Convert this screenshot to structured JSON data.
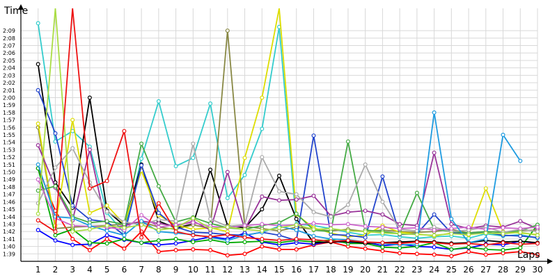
{
  "chart_data": {
    "type": "line",
    "ylabel": "Time",
    "xlabel": "Laps",
    "x": [
      1,
      2,
      3,
      4,
      5,
      6,
      7,
      8,
      9,
      10,
      11,
      12,
      13,
      14,
      15,
      16,
      17,
      18,
      19,
      20,
      21,
      22,
      23,
      24,
      25,
      26,
      27,
      28,
      29,
      30
    ],
    "xlim": [
      0,
      30
    ],
    "ylim": [
      98,
      132
    ],
    "ytick_values": [
      99,
      100,
      101,
      102,
      103,
      104,
      105,
      106,
      107,
      108,
      109,
      110,
      111,
      112,
      113,
      114,
      115,
      116,
      117,
      118,
      119,
      120,
      121,
      122,
      123,
      124,
      125,
      126,
      127,
      128,
      129
    ],
    "ytick_labels": [
      "1:39",
      "1:40",
      "1:41",
      "1:42",
      "1:43",
      "1:44",
      "1:45",
      "1:46",
      "1:47",
      "1:48",
      "1:49",
      "1:50",
      "1:51",
      "1:52",
      "1:53",
      "1:54",
      "1:55",
      "1:56",
      "1:57",
      "1:58",
      "1:59",
      "2:00",
      "2:01",
      "2:02",
      "2:03",
      "2:04",
      "2:05",
      "2:06",
      "2:07",
      "2:08",
      "2:09"
    ],
    "grid": true,
    "legend": "none",
    "series": [
      {
        "color": "#ff0000",
        "values": [
          110.5,
          104.8,
          101,
          99.5,
          101,
          99.7,
          102,
          99.3,
          99.5,
          99.6,
          99.5,
          98.8,
          99.0,
          100.0,
          99.6,
          99.6,
          100.2,
          100.6,
          100.0,
          99.7,
          99.4,
          99.1,
          99.0,
          98.9,
          98.7,
          99.3,
          98.9,
          99.1,
          99.3,
          98.9
        ]
      },
      {
        "color": "#0000ff",
        "values": [
          102.2,
          100.8,
          100.2,
          100.3,
          101.5,
          100.9,
          100.5,
          100.2,
          100.4,
          100.8,
          101.3,
          101.0,
          101.8,
          100.6,
          100.2,
          100.5,
          100.3,
          100.7,
          100.5,
          100.6,
          100.1,
          100.3,
          100.0,
          99.9,
          99.6,
          99.8,
          100.3,
          100.2,
          100.7,
          100.4
        ]
      },
      {
        "color": "#00aa00",
        "values": [
          110.5,
          101.5,
          102.3,
          100.5,
          100.4,
          101.0,
          100.5,
          100.8,
          101.0,
          100.6,
          100.9,
          100.5,
          100.6,
          100.7,
          100.5,
          100.8,
          100.6,
          100.9,
          100.4,
          100.4,
          99.9,
          99.8,
          100.0,
          100.5,
          99.6,
          99.9,
          99.6,
          99.5,
          99.8,
          102.9
        ]
      },
      {
        "color": "#33cccc",
        "values": [
          130,
          114.1,
          115.5,
          113.4,
          104.5,
          101.8,
          111.8,
          119.5,
          110.8,
          111.9,
          119.2,
          106.5,
          109.6,
          115.8,
          129.5,
          103.0,
          102.8,
          102.4,
          101.9,
          101.5,
          101.6,
          101.3,
          101.1,
          101.3,
          101.4,
          101.1,
          101.7,
          101.4,
          101.6,
          101.1
        ]
      },
      {
        "color": "#000000",
        "values": [
          124.5,
          108.6,
          105.2,
          120.0,
          104.8,
          102.8,
          111.0,
          103.4,
          102.5,
          103.0,
          110.3,
          102.8,
          102.5,
          105.0,
          109.5,
          103.7,
          100.5,
          100.6,
          100.7,
          100.4,
          100.5,
          100.6,
          100.7,
          100.6,
          100.4,
          100.5,
          100.8,
          100.6,
          100.7,
          100.5
        ]
      },
      {
        "color": "#888844",
        "values": [
          116.0,
          102.4,
          102.6,
          102.7,
          102.8,
          103.0,
          103.3,
          102.6,
          102.3,
          102.9,
          102.4,
          129.0,
          102.7,
          102.4,
          102.1,
          102.6,
          102.3,
          102.1,
          102.3,
          102.0,
          102.2,
          102.0,
          101.9,
          102.0,
          102.3,
          101.8,
          102.0,
          101.9,
          102.1,
          102.2
        ]
      },
      {
        "color": "#dddd00",
        "values": [
          116.5,
          102.8,
          117.0,
          104.5,
          105.5,
          103.0,
          110.2,
          104.2,
          102.9,
          102.3,
          102.5,
          102.0,
          111.9,
          120.0,
          132,
          104.3,
          102.5,
          101.8,
          101.3,
          101.5,
          102.8,
          101.9,
          101.7,
          101.4,
          101.8,
          101.5,
          107.8,
          102.0,
          101.8,
          101.6
        ]
      },
      {
        "color": "#2244cc",
        "values": [
          121.0,
          115.2,
          105.5,
          103.6,
          103.3,
          101.5,
          110.9,
          104.5,
          102.6,
          101.9,
          101.8,
          101.6,
          101.5,
          101.9,
          101.5,
          100.8,
          114.9,
          101.6,
          101.5,
          101.2,
          109.4,
          101.6,
          101.7,
          104.3,
          101.8,
          101.7,
          101.9,
          101.5,
          101.4,
          101.2
        ]
      },
      {
        "color": "#993399",
        "values": [
          113.6,
          107.9,
          103.5,
          113.0,
          102.4,
          102.8,
          103.4,
          103.1,
          102.7,
          103.4,
          102.2,
          110.0,
          102.3,
          106.7,
          106.2,
          106.3,
          106.8,
          104.1,
          104.6,
          104.8,
          104.3,
          103.0,
          102.8,
          112.6,
          103.0,
          102.4,
          102.8,
          102.6,
          103.4,
          102.4
        ]
      },
      {
        "color": "#44aa44",
        "values": [
          107.5,
          108.1,
          104.0,
          103.2,
          103.4,
          103.0,
          113.8,
          108.1,
          103.3,
          103.9,
          103.1,
          102.5,
          102.3,
          102.8,
          103.2,
          104.4,
          102.2,
          102.0,
          114.1,
          102.2,
          102.0,
          101.7,
          107.2,
          102.3,
          102.0,
          101.8,
          102.0,
          101.9,
          102.1,
          102.9
        ]
      },
      {
        "color": "#aaaaaa",
        "values": [
          105.8,
          110.6,
          113.2,
          108.6,
          104.7,
          103.3,
          102.9,
          103.6,
          103.4,
          113.8,
          103.7,
          102.7,
          102.9,
          112.0,
          107.4,
          107.0,
          104.6,
          104.0,
          105.6,
          111.0,
          106.0,
          102.3,
          102.1,
          102.6,
          102.0,
          102.2,
          102.6,
          101.9,
          102.3,
          102.0
        ]
      },
      {
        "color": "#cc66cc",
        "values": [
          109.0,
          103.8,
          102.8,
          102.7,
          102.6,
          102.2,
          104.2,
          102.6,
          102.9,
          103.2,
          102.7,
          102.5,
          102.8,
          103.0,
          102.8,
          102.9,
          103.1,
          102.9,
          103.0,
          102.7,
          102.6,
          102.4,
          102.5,
          102.2,
          102.4,
          102.6,
          102.3,
          102.5,
          102.4,
          102.6
        ]
      },
      {
        "color": "#1e9be0",
        "values": [
          111.0,
          104.0,
          103.8,
          102.8,
          102.1,
          101.5,
          103.4,
          102.0,
          101.8,
          101.6,
          101.2,
          100.8,
          101.5,
          101.9,
          102.7,
          102.2,
          101.4,
          101.0,
          100.9,
          100.6,
          100.4,
          100.2,
          100.3,
          118.0,
          103.7,
          100.5,
          101.0,
          115.0,
          111.5,
          null
        ]
      },
      {
        "color": "#aadd44",
        "values": [
          104.4,
          132,
          102.0,
          102.3,
          102.8,
          102.5,
          102.9,
          102.2,
          102.5,
          103.8,
          102.4,
          102.6,
          102.3,
          102.1,
          102.5,
          102.9,
          102.3,
          102.4,
          102.1,
          102.0,
          101.8,
          101.7,
          101.6,
          101.5,
          101.7,
          101.6,
          101.8,
          101.7,
          101.9,
          101.5
        ]
      },
      {
        "color": "#ee1111",
        "values": [
          103.5,
          102.0,
          132,
          107.8,
          108.8,
          115.5,
          101.2,
          105.8,
          102.0,
          101.5,
          101.3,
          101.6,
          101.2,
          101.0,
          100.8,
          101.0,
          100.9,
          100.7,
          100.8,
          100.6,
          100.5,
          100.4,
          100.6,
          100.5,
          100.3,
          100.4,
          100.2,
          100.5,
          100.3,
          100.4
        ]
      }
    ]
  }
}
